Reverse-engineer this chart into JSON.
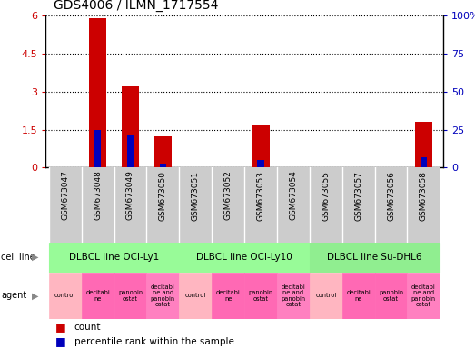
{
  "title": "GDS4006 / ILMN_1717554",
  "samples": [
    "GSM673047",
    "GSM673048",
    "GSM673049",
    "GSM673050",
    "GSM673051",
    "GSM673052",
    "GSM673053",
    "GSM673054",
    "GSM673055",
    "GSM673057",
    "GSM673056",
    "GSM673058"
  ],
  "count_values": [
    0,
    5.9,
    3.2,
    1.25,
    0,
    0,
    1.65,
    0,
    0,
    0,
    0,
    1.8
  ],
  "percentile_values_scaled": [
    0,
    25,
    22,
    2.5,
    0,
    0,
    5,
    0,
    0,
    0,
    0,
    7
  ],
  "ylim_left": [
    0,
    6
  ],
  "ylim_right": [
    0,
    100
  ],
  "yticks_left": [
    0,
    1.5,
    3.0,
    4.5,
    6.0
  ],
  "ytick_labels_left": [
    "0",
    "1.5",
    "3",
    "4.5",
    "6"
  ],
  "yticks_right": [
    0,
    25,
    50,
    75,
    100
  ],
  "ytick_labels_right": [
    "0",
    "25",
    "50",
    "75",
    "100%"
  ],
  "cell_line_labels": [
    "DLBCL line OCI-Ly1",
    "DLBCL line OCI-Ly10",
    "DLBCL line Su-DHL6"
  ],
  "cell_line_groups": [
    [
      0,
      1,
      2,
      3
    ],
    [
      4,
      5,
      6,
      7
    ],
    [
      8,
      9,
      10,
      11
    ]
  ],
  "cell_line_colors": [
    "#98FB98",
    "#98FB98",
    "#90EE90"
  ],
  "agents": [
    "control",
    "decitabi\nne",
    "panobin\nostat",
    "decitabi\nne and\npanobin\nostat",
    "control",
    "decitabi\nne",
    "panobin\nostat",
    "decitabi\nne and\npanobin\nostat",
    "control",
    "decitabi\nne",
    "panobin\nostat",
    "decitabi\nne and\npanobin\nostat"
  ],
  "agent_colors": [
    "#FFB6C1",
    "#FF69B4",
    "#FF69B4",
    "#FF80C0",
    "#FFB6C1",
    "#FF69B4",
    "#FF69B4",
    "#FF80C0",
    "#FFB6C1",
    "#FF69B4",
    "#FF69B4",
    "#FF80C0"
  ],
  "bar_color_red": "#CC0000",
  "bar_color_blue": "#0000BB",
  "bar_width": 0.55,
  "blue_bar_width": 0.2,
  "grid_color": "#000000",
  "tick_label_color_left": "#CC0000",
  "tick_label_color_right": "#0000BB",
  "xlabel_area_color": "#CCCCCC",
  "bg_color": "#FFFFFF",
  "cell_line_border": "#008000",
  "agent_border": "#CC44CC"
}
